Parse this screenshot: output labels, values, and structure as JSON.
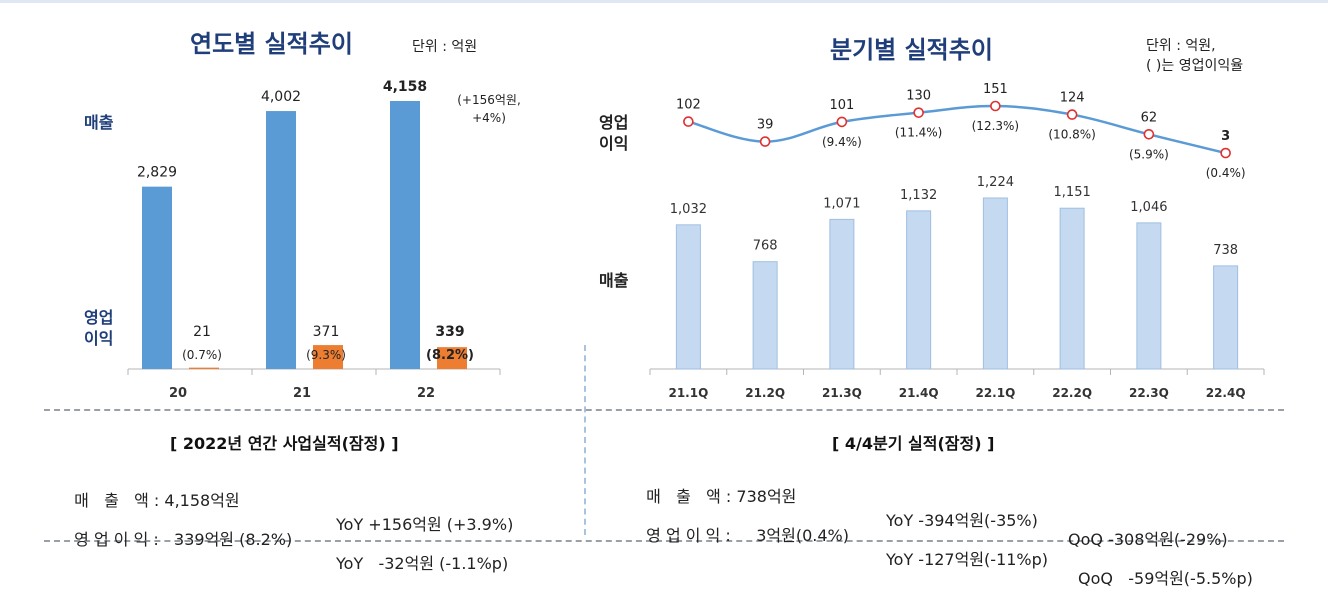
{
  "left": {
    "title": "연도별 실적추이",
    "unit": "단위 : 억원",
    "label_sales": "매출",
    "label_op_line1": "영업",
    "label_op_line2": "이익"
  },
  "right": {
    "title": "분기별 실적추이",
    "unit_line1": "단위 : 억원,",
    "unit_line2": "( )는 영업이익율",
    "label_op_line1": "영업",
    "label_op_line2": "이익",
    "label_sales": "매출"
  },
  "annual_summary": {
    "title": "[ 2022년 연간 사업실적(잠정) ]",
    "row1_label": "매   출   액 : 4,158억원",
    "row1_yoy": "YoY +156억원 (+3.9%)",
    "row2_label": "영 업 이 익 :   339억원 (8.2%)",
    "row2_yoy": "YoY   -32억원 (-1.1%p)"
  },
  "quarter_summary": {
    "title": "[ 4/4분기 실적(잠정) ]",
    "row1_label": "매   출   액 : 738억원",
    "row1_yoy": "YoY -394억원(-35%)",
    "row1_qoq": "QoQ -308억원(-29%)",
    "row2_label": "영 업 이 익 :     3억원(0.4%)",
    "row2_yoy": "YoY -127억원(-11%p)",
    "row2_qoq": "QoQ   -59억원(-5.5%p)"
  },
  "chart_data": [
    {
      "type": "bar",
      "title": "연도별 실적추이",
      "categories": [
        "20",
        "21",
        "22"
      ],
      "series": [
        {
          "name": "매출",
          "values": [
            2829,
            4002,
            4158
          ],
          "color": "#5b9bd5",
          "labels": [
            "2,829",
            "4,002",
            "4,158"
          ]
        },
        {
          "name": "영업이익",
          "values": [
            21,
            371,
            339
          ],
          "color": "#ed7d31",
          "labels": [
            "21",
            "371",
            "339"
          ],
          "margins": [
            "(0.7%)",
            "(9.3%)",
            "(8.2%)"
          ]
        }
      ],
      "annotation": {
        "category": "22",
        "line1": "(+156억원,",
        "line2": "+4%)"
      },
      "ylim": [
        0,
        4300
      ],
      "grid": false
    },
    {
      "type": "bar+line",
      "title": "분기별 실적추이",
      "categories": [
        "21.1Q",
        "21.2Q",
        "21.3Q",
        "21.4Q",
        "22.1Q",
        "22.2Q",
        "22.3Q",
        "22.4Q"
      ],
      "series": [
        {
          "name": "매출",
          "type": "bar",
          "color": "#c5daf0",
          "values": [
            1032,
            768,
            1071,
            1132,
            1224,
            1151,
            1046,
            738
          ],
          "labels": [
            "1,032",
            "768",
            "1,071",
            "1,132",
            "1,224",
            "1,151",
            "1,046",
            "738"
          ]
        },
        {
          "name": "영업이익",
          "type": "line",
          "color": "#5b9bd5",
          "values": [
            102,
            39,
            101,
            130,
            151,
            124,
            62,
            3
          ],
          "labels": [
            "102",
            "39",
            "101",
            "130",
            "151",
            "124",
            "62",
            "3"
          ],
          "margins": [
            "",
            "",
            "(9.4%)",
            "(11.4%)",
            "(12.3%)",
            "(10.8%)",
            "(5.9%)",
            "(0.4%)"
          ]
        }
      ],
      "grid": false
    }
  ]
}
